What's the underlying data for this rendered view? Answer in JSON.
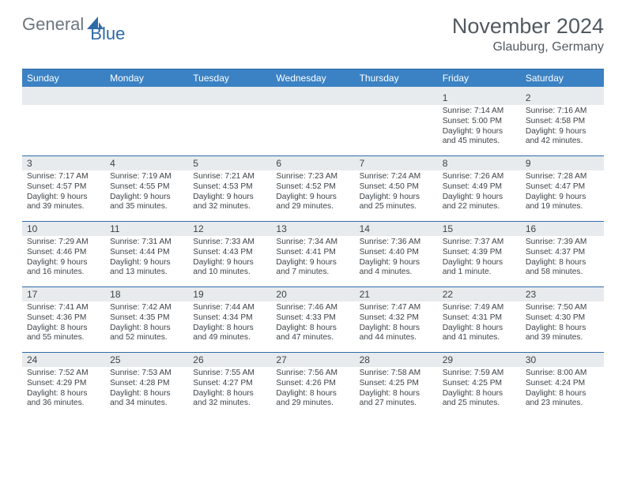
{
  "brand": {
    "part1": "General",
    "part2": "Blue"
  },
  "title": "November 2024",
  "location": "Glauburg, Germany",
  "colors": {
    "header_bg": "#3b82c4",
    "border": "#2f6aa8",
    "num_bg": "#e8ebed",
    "text": "#3d4348",
    "logo_gray": "#6b7680",
    "logo_blue": "#2f6aa8"
  },
  "layout": {
    "cols": 7,
    "rows": 5,
    "cell_min_height": 82
  },
  "dayNames": [
    "Sunday",
    "Monday",
    "Tuesday",
    "Wednesday",
    "Thursday",
    "Friday",
    "Saturday"
  ],
  "weeks": [
    [
      {
        "n": "",
        "sr": "",
        "ss": "",
        "dl": ""
      },
      {
        "n": "",
        "sr": "",
        "ss": "",
        "dl": ""
      },
      {
        "n": "",
        "sr": "",
        "ss": "",
        "dl": ""
      },
      {
        "n": "",
        "sr": "",
        "ss": "",
        "dl": ""
      },
      {
        "n": "",
        "sr": "",
        "ss": "",
        "dl": ""
      },
      {
        "n": "1",
        "sr": "Sunrise: 7:14 AM",
        "ss": "Sunset: 5:00 PM",
        "dl": "Daylight: 9 hours and 45 minutes."
      },
      {
        "n": "2",
        "sr": "Sunrise: 7:16 AM",
        "ss": "Sunset: 4:58 PM",
        "dl": "Daylight: 9 hours and 42 minutes."
      }
    ],
    [
      {
        "n": "3",
        "sr": "Sunrise: 7:17 AM",
        "ss": "Sunset: 4:57 PM",
        "dl": "Daylight: 9 hours and 39 minutes."
      },
      {
        "n": "4",
        "sr": "Sunrise: 7:19 AM",
        "ss": "Sunset: 4:55 PM",
        "dl": "Daylight: 9 hours and 35 minutes."
      },
      {
        "n": "5",
        "sr": "Sunrise: 7:21 AM",
        "ss": "Sunset: 4:53 PM",
        "dl": "Daylight: 9 hours and 32 minutes."
      },
      {
        "n": "6",
        "sr": "Sunrise: 7:23 AM",
        "ss": "Sunset: 4:52 PM",
        "dl": "Daylight: 9 hours and 29 minutes."
      },
      {
        "n": "7",
        "sr": "Sunrise: 7:24 AM",
        "ss": "Sunset: 4:50 PM",
        "dl": "Daylight: 9 hours and 25 minutes."
      },
      {
        "n": "8",
        "sr": "Sunrise: 7:26 AM",
        "ss": "Sunset: 4:49 PM",
        "dl": "Daylight: 9 hours and 22 minutes."
      },
      {
        "n": "9",
        "sr": "Sunrise: 7:28 AM",
        "ss": "Sunset: 4:47 PM",
        "dl": "Daylight: 9 hours and 19 minutes."
      }
    ],
    [
      {
        "n": "10",
        "sr": "Sunrise: 7:29 AM",
        "ss": "Sunset: 4:46 PM",
        "dl": "Daylight: 9 hours and 16 minutes."
      },
      {
        "n": "11",
        "sr": "Sunrise: 7:31 AM",
        "ss": "Sunset: 4:44 PM",
        "dl": "Daylight: 9 hours and 13 minutes."
      },
      {
        "n": "12",
        "sr": "Sunrise: 7:33 AM",
        "ss": "Sunset: 4:43 PM",
        "dl": "Daylight: 9 hours and 10 minutes."
      },
      {
        "n": "13",
        "sr": "Sunrise: 7:34 AM",
        "ss": "Sunset: 4:41 PM",
        "dl": "Daylight: 9 hours and 7 minutes."
      },
      {
        "n": "14",
        "sr": "Sunrise: 7:36 AM",
        "ss": "Sunset: 4:40 PM",
        "dl": "Daylight: 9 hours and 4 minutes."
      },
      {
        "n": "15",
        "sr": "Sunrise: 7:37 AM",
        "ss": "Sunset: 4:39 PM",
        "dl": "Daylight: 9 hours and 1 minute."
      },
      {
        "n": "16",
        "sr": "Sunrise: 7:39 AM",
        "ss": "Sunset: 4:37 PM",
        "dl": "Daylight: 8 hours and 58 minutes."
      }
    ],
    [
      {
        "n": "17",
        "sr": "Sunrise: 7:41 AM",
        "ss": "Sunset: 4:36 PM",
        "dl": "Daylight: 8 hours and 55 minutes."
      },
      {
        "n": "18",
        "sr": "Sunrise: 7:42 AM",
        "ss": "Sunset: 4:35 PM",
        "dl": "Daylight: 8 hours and 52 minutes."
      },
      {
        "n": "19",
        "sr": "Sunrise: 7:44 AM",
        "ss": "Sunset: 4:34 PM",
        "dl": "Daylight: 8 hours and 49 minutes."
      },
      {
        "n": "20",
        "sr": "Sunrise: 7:46 AM",
        "ss": "Sunset: 4:33 PM",
        "dl": "Daylight: 8 hours and 47 minutes."
      },
      {
        "n": "21",
        "sr": "Sunrise: 7:47 AM",
        "ss": "Sunset: 4:32 PM",
        "dl": "Daylight: 8 hours and 44 minutes."
      },
      {
        "n": "22",
        "sr": "Sunrise: 7:49 AM",
        "ss": "Sunset: 4:31 PM",
        "dl": "Daylight: 8 hours and 41 minutes."
      },
      {
        "n": "23",
        "sr": "Sunrise: 7:50 AM",
        "ss": "Sunset: 4:30 PM",
        "dl": "Daylight: 8 hours and 39 minutes."
      }
    ],
    [
      {
        "n": "24",
        "sr": "Sunrise: 7:52 AM",
        "ss": "Sunset: 4:29 PM",
        "dl": "Daylight: 8 hours and 36 minutes."
      },
      {
        "n": "25",
        "sr": "Sunrise: 7:53 AM",
        "ss": "Sunset: 4:28 PM",
        "dl": "Daylight: 8 hours and 34 minutes."
      },
      {
        "n": "26",
        "sr": "Sunrise: 7:55 AM",
        "ss": "Sunset: 4:27 PM",
        "dl": "Daylight: 8 hours and 32 minutes."
      },
      {
        "n": "27",
        "sr": "Sunrise: 7:56 AM",
        "ss": "Sunset: 4:26 PM",
        "dl": "Daylight: 8 hours and 29 minutes."
      },
      {
        "n": "28",
        "sr": "Sunrise: 7:58 AM",
        "ss": "Sunset: 4:25 PM",
        "dl": "Daylight: 8 hours and 27 minutes."
      },
      {
        "n": "29",
        "sr": "Sunrise: 7:59 AM",
        "ss": "Sunset: 4:25 PM",
        "dl": "Daylight: 8 hours and 25 minutes."
      },
      {
        "n": "30",
        "sr": "Sunrise: 8:00 AM",
        "ss": "Sunset: 4:24 PM",
        "dl": "Daylight: 8 hours and 23 minutes."
      }
    ]
  ]
}
